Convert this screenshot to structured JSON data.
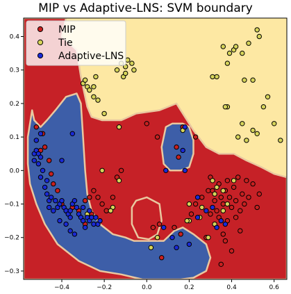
{
  "chart_data": {
    "type": "scatter",
    "title": "MIP vs Adaptive-LNS: SVM boundary",
    "xlabel": "",
    "ylabel": "",
    "xlim": [
      -0.58,
      0.66
    ],
    "ylim": [
      -0.325,
      0.455
    ],
    "x_ticks": [
      -0.4,
      -0.2,
      0.0,
      0.2,
      0.4,
      0.6
    ],
    "y_ticks": [
      -0.3,
      -0.2,
      -0.1,
      0.0,
      0.1,
      0.2,
      0.3,
      0.4
    ],
    "x_tick_labels": [
      "−0.4",
      "−0.2",
      "0.0",
      "0.2",
      "0.4",
      "0.6"
    ],
    "y_tick_labels": [
      "−0.3",
      "−0.2",
      "−0.1",
      "0.0",
      "0.1",
      "0.2",
      "0.3",
      "0.4"
    ],
    "grid": false,
    "legend_position": "top-left",
    "colors": {
      "region_mip": "#c62127",
      "region_tie": "#fde8a3",
      "region_adaptive": "#3d5ea8",
      "point_mip": "#c8201f",
      "point_tie": "#d6d45a",
      "point_adaptive": "#1a2ad6",
      "edge": "#000000"
    },
    "regions": {
      "adaptive": [
        [
          [
            -0.54,
            0.18
          ],
          [
            -0.53,
            0.15
          ],
          [
            -0.5,
            0.13
          ],
          [
            -0.47,
            0.15
          ],
          [
            -0.43,
            0.18
          ],
          [
            -0.38,
            0.22
          ],
          [
            -0.33,
            0.23
          ],
          [
            -0.31,
            0.2
          ],
          [
            -0.3,
            0.1
          ],
          [
            -0.29,
            0.0
          ],
          [
            -0.28,
            -0.07
          ],
          [
            -0.26,
            -0.12
          ],
          [
            -0.22,
            -0.16
          ],
          [
            -0.16,
            -0.19
          ],
          [
            -0.1,
            -0.2
          ],
          [
            -0.06,
            -0.21
          ],
          [
            0.0,
            -0.21
          ],
          [
            0.08,
            -0.21
          ],
          [
            0.13,
            -0.18
          ],
          [
            0.17,
            -0.17
          ],
          [
            0.22,
            -0.19
          ],
          [
            0.28,
            -0.22
          ],
          [
            0.3,
            -0.26
          ],
          [
            0.28,
            -0.3
          ],
          [
            0.22,
            -0.32
          ],
          [
            0.16,
            -0.325
          ],
          [
            0.06,
            -0.325
          ],
          [
            -0.02,
            -0.325
          ],
          [
            -0.12,
            -0.31
          ],
          [
            -0.22,
            -0.3
          ],
          [
            -0.32,
            -0.27
          ],
          [
            -0.42,
            -0.22
          ],
          [
            -0.48,
            -0.16
          ],
          [
            -0.52,
            -0.1
          ],
          [
            -0.55,
            -0.04
          ],
          [
            -0.56,
            0.02
          ],
          [
            -0.56,
            0.1
          ]
        ],
        [
          [
            0.09,
            0.13
          ],
          [
            0.12,
            0.14
          ],
          [
            0.17,
            0.14
          ],
          [
            0.2,
            0.13
          ],
          [
            0.22,
            0.09
          ],
          [
            0.22,
            0.05
          ],
          [
            0.2,
            0.01
          ],
          [
            0.16,
            0.0
          ],
          [
            0.11,
            0.0
          ],
          [
            0.08,
            0.02
          ],
          [
            0.07,
            0.07
          ]
        ]
      ],
      "mip": [
        [
          [
            -0.58,
            0.455
          ],
          [
            -0.38,
            0.455
          ],
          [
            -0.4,
            0.4
          ],
          [
            -0.33,
            0.36
          ],
          [
            -0.31,
            0.28
          ],
          [
            -0.28,
            0.19
          ],
          [
            -0.26,
            0.16
          ],
          [
            -0.21,
            0.15
          ],
          [
            -0.12,
            0.15
          ],
          [
            -0.05,
            0.17
          ],
          [
            0.06,
            0.18
          ],
          [
            0.14,
            0.2
          ],
          [
            0.18,
            0.16
          ],
          [
            0.22,
            0.12
          ],
          [
            0.28,
            0.07
          ],
          [
            0.34,
            0.05
          ],
          [
            0.41,
            0.05
          ],
          [
            0.47,
            0.03
          ],
          [
            0.54,
            0.01
          ],
          [
            0.6,
            -0.01
          ],
          [
            0.66,
            -0.02
          ],
          [
            0.66,
            -0.325
          ],
          [
            -0.58,
            -0.325
          ]
        ],
        [
          [
            -0.05,
            -0.09
          ],
          [
            0.0,
            -0.08
          ],
          [
            0.06,
            -0.1
          ],
          [
            0.07,
            -0.15
          ],
          [
            0.05,
            -0.19
          ],
          [
            0.01,
            -0.205
          ],
          [
            -0.04,
            -0.2
          ],
          [
            -0.07,
            -0.16
          ],
          [
            -0.07,
            -0.11
          ]
        ]
      ]
    },
    "series": [
      {
        "name": "MIP",
        "points": [
          [
            -0.5,
            0.06
          ],
          [
            -0.48,
            0.07
          ],
          [
            -0.46,
            0.03
          ],
          [
            -0.45,
            -0.01
          ],
          [
            -0.44,
            -0.04
          ],
          [
            -0.42,
            -0.06
          ],
          [
            -0.4,
            -0.1
          ],
          [
            -0.38,
            -0.12
          ],
          [
            -0.35,
            -0.11
          ],
          [
            -0.32,
            -0.12
          ],
          [
            -0.29,
            -0.09
          ],
          [
            -0.27,
            -0.08
          ],
          [
            -0.25,
            -0.06
          ],
          [
            -0.23,
            -0.08
          ],
          [
            -0.21,
            -0.1
          ],
          [
            -0.19,
            -0.12
          ],
          [
            -0.16,
            -0.08
          ],
          [
            -0.14,
            -0.02
          ],
          [
            -0.12,
            0.0
          ],
          [
            -0.26,
            -0.13
          ],
          [
            -0.29,
            -0.16
          ],
          [
            -0.52,
            0.13
          ],
          [
            -0.49,
            0.11
          ],
          [
            0.0,
            0.14
          ],
          [
            0.05,
            0.1
          ],
          [
            0.14,
            0.07
          ],
          [
            0.17,
            0.13
          ],
          [
            0.23,
            0.1
          ],
          [
            0.15,
            0.04
          ],
          [
            0.03,
            -0.17
          ],
          [
            0.06,
            -0.16
          ],
          [
            0.13,
            -0.17
          ],
          [
            0.16,
            -0.19
          ],
          [
            0.07,
            -0.26
          ],
          [
            0.28,
            -0.2
          ],
          [
            0.26,
            -0.08
          ],
          [
            0.29,
            -0.06
          ],
          [
            0.3,
            -0.02
          ],
          [
            0.31,
            -0.06
          ],
          [
            0.32,
            -0.09
          ],
          [
            0.33,
            -0.12
          ],
          [
            0.34,
            -0.04
          ],
          [
            0.35,
            -0.08
          ],
          [
            0.36,
            -0.1
          ],
          [
            0.37,
            -0.06
          ],
          [
            0.38,
            -0.03
          ],
          [
            0.39,
            -0.08
          ],
          [
            0.4,
            -0.11
          ],
          [
            0.41,
            -0.05
          ],
          [
            0.42,
            -0.09
          ],
          [
            0.43,
            -0.02
          ],
          [
            0.44,
            -0.12
          ],
          [
            0.45,
            -0.07
          ],
          [
            0.46,
            -0.1
          ],
          [
            0.47,
            -0.03
          ],
          [
            0.48,
            -0.08
          ],
          [
            0.5,
            -0.04
          ],
          [
            0.52,
            -0.11
          ],
          [
            0.53,
            -0.07
          ],
          [
            0.3,
            -0.13
          ],
          [
            0.34,
            -0.14
          ],
          [
            0.38,
            -0.15
          ],
          [
            0.42,
            -0.14
          ],
          [
            0.21,
            -0.13
          ],
          [
            0.23,
            -0.1
          ],
          [
            0.36,
            -0.19
          ],
          [
            0.37,
            -0.21
          ],
          [
            0.35,
            -0.28
          ],
          [
            0.4,
            -0.24
          ],
          [
            0.44,
            -0.18
          ]
        ]
      },
      {
        "name": "Tie",
        "points": [
          [
            -0.14,
            0.3
          ],
          [
            -0.12,
            0.32
          ],
          [
            -0.11,
            0.28
          ],
          [
            -0.1,
            0.29
          ],
          [
            -0.1,
            0.31
          ],
          [
            -0.09,
            0.33
          ],
          [
            -0.07,
            0.32
          ],
          [
            -0.06,
            0.3
          ],
          [
            -0.3,
            0.26
          ],
          [
            -0.29,
            0.27
          ],
          [
            -0.28,
            0.25
          ],
          [
            -0.27,
            0.24
          ],
          [
            -0.25,
            0.22
          ],
          [
            -0.25,
            0.25
          ],
          [
            -0.24,
            0.28
          ],
          [
            -0.23,
            0.21
          ],
          [
            -0.2,
            0.17
          ],
          [
            -0.13,
            0.13
          ],
          [
            0.17,
            0.12
          ],
          [
            0.36,
            0.37
          ],
          [
            0.38,
            0.32
          ],
          [
            0.39,
            0.35
          ],
          [
            0.41,
            0.36
          ],
          [
            0.42,
            0.37
          ],
          [
            0.45,
            0.35
          ],
          [
            0.48,
            0.38
          ],
          [
            0.52,
            0.42
          ],
          [
            0.53,
            0.4
          ],
          [
            0.5,
            0.27
          ],
          [
            0.46,
            0.27
          ],
          [
            0.57,
            0.22
          ],
          [
            0.55,
            0.19
          ],
          [
            0.6,
            0.14
          ],
          [
            0.45,
            0.14
          ],
          [
            0.5,
            0.12
          ],
          [
            0.52,
            0.11
          ],
          [
            0.43,
            0.1
          ],
          [
            0.47,
            0.09
          ],
          [
            0.38,
            0.19
          ],
          [
            0.37,
            0.19
          ],
          [
            0.33,
            0.28
          ],
          [
            0.31,
            0.28
          ],
          [
            0.63,
            0.09
          ],
          [
            0.31,
            -0.03
          ],
          [
            0.33,
            -0.05
          ],
          [
            0.36,
            -0.06
          ],
          [
            0.38,
            -0.1
          ],
          [
            0.32,
            -0.07
          ],
          [
            0.36,
            -0.12
          ],
          [
            0.41,
            -0.03
          ],
          [
            0.26,
            -0.11
          ],
          [
            0.25,
            -0.14
          ],
          [
            0.2,
            -0.15
          ],
          [
            0.19,
            -0.15
          ],
          [
            0.2,
            -0.1
          ],
          [
            0.32,
            -0.16
          ],
          [
            0.29,
            -0.2
          ],
          [
            0.05,
            -0.2
          ],
          [
            0.02,
            -0.23
          ],
          [
            -0.21,
            0.0
          ],
          [
            -0.13,
            -0.03
          ],
          [
            -0.16,
            -0.11
          ],
          [
            -0.17,
            -0.12
          ],
          [
            -0.28,
            -0.13
          ]
        ]
      },
      {
        "name": "Adaptive-LNS",
        "points": [
          [
            -0.53,
            0.05
          ],
          [
            -0.53,
            0.03
          ],
          [
            -0.52,
            0.09
          ],
          [
            -0.52,
            0.06
          ],
          [
            -0.51,
            0.05
          ],
          [
            -0.51,
            0.02
          ],
          [
            -0.5,
            0.11
          ],
          [
            -0.5,
            0.04
          ],
          [
            -0.5,
            -0.02
          ],
          [
            -0.49,
            0.0
          ],
          [
            -0.48,
            -0.05
          ],
          [
            -0.47,
            -0.03
          ],
          [
            -0.47,
            -0.07
          ],
          [
            -0.46,
            -0.09
          ],
          [
            -0.46,
            -0.11
          ],
          [
            -0.45,
            -0.08
          ],
          [
            -0.44,
            -0.12
          ],
          [
            -0.43,
            -0.09
          ],
          [
            -0.42,
            -0.11
          ],
          [
            -0.41,
            -0.1
          ],
          [
            -0.4,
            -0.09
          ],
          [
            -0.39,
            -0.11
          ],
          [
            -0.38,
            -0.12
          ],
          [
            -0.37,
            -0.13
          ],
          [
            -0.36,
            -0.12
          ],
          [
            -0.36,
            -0.14
          ],
          [
            -0.35,
            -0.1
          ],
          [
            -0.34,
            -0.09
          ],
          [
            -0.33,
            -0.11
          ],
          [
            -0.32,
            -0.13
          ],
          [
            -0.31,
            -0.14
          ],
          [
            -0.3,
            -0.15
          ],
          [
            -0.29,
            -0.17
          ],
          [
            -0.28,
            -0.14
          ],
          [
            -0.27,
            -0.15
          ],
          [
            -0.26,
            -0.14
          ],
          [
            -0.25,
            -0.16
          ],
          [
            -0.24,
            -0.14
          ],
          [
            -0.23,
            -0.16
          ],
          [
            -0.22,
            -0.15
          ],
          [
            -0.38,
            -0.16
          ],
          [
            -0.36,
            -0.18
          ],
          [
            -0.34,
            -0.19
          ],
          [
            -0.41,
            -0.15
          ],
          [
            -0.4,
            0.03
          ],
          [
            -0.35,
            0.11
          ],
          [
            -0.3,
            -0.11
          ],
          [
            -0.27,
            -0.12
          ],
          [
            0.18,
            0.13
          ],
          [
            0.17,
            0.06
          ],
          [
            0.09,
            0.0
          ],
          [
            0.18,
            0.0
          ],
          [
            0.08,
            -0.17
          ],
          [
            0.12,
            -0.2
          ],
          [
            0.14,
            -0.23
          ],
          [
            0.2,
            -0.22
          ],
          [
            0.24,
            -0.14
          ],
          [
            0.28,
            -0.12
          ],
          [
            0.31,
            -0.11
          ],
          [
            0.33,
            -0.17
          ],
          [
            0.35,
            -0.15
          ],
          [
            0.37,
            -0.16
          ],
          [
            0.24,
            -0.08
          ]
        ]
      }
    ]
  },
  "legend": {
    "items": [
      {
        "label": "MIP"
      },
      {
        "label": "Tie"
      },
      {
        "label": "Adaptive-LNS"
      }
    ]
  }
}
